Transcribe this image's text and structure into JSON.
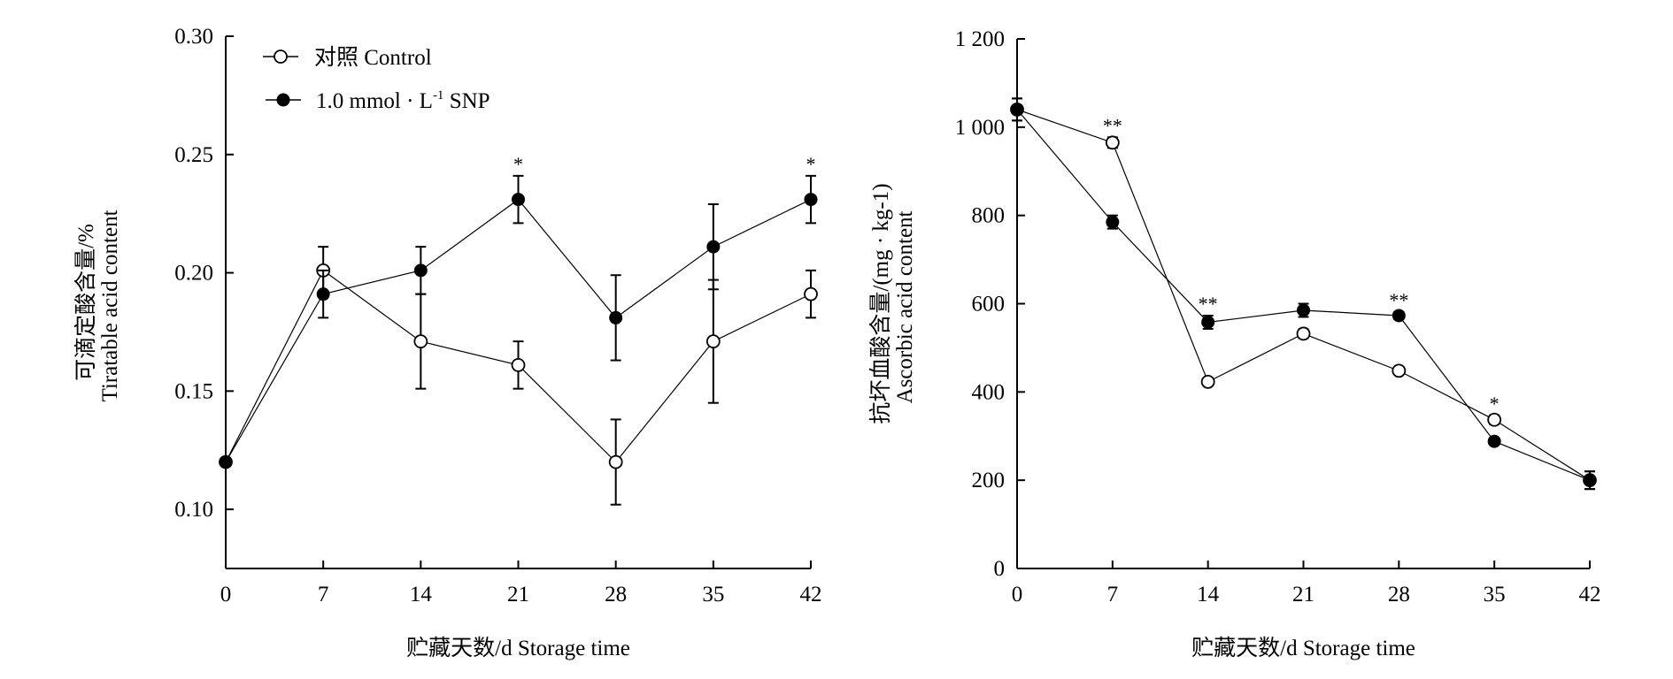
{
  "chart_data": [
    {
      "type": "line",
      "title": "",
      "xlabel": "贮藏天数/d Storage time",
      "ylabel_cn": "可滴定酸含量/%",
      "ylabel_en": "Tiratable acid content",
      "x": [
        0,
        7,
        14,
        21,
        28,
        35,
        42
      ],
      "xticks": [
        "0",
        "7",
        "14",
        "21",
        "28",
        "35",
        "42"
      ],
      "ylim": [
        0.075,
        0.3
      ],
      "yticks": [
        0.1,
        0.15,
        0.2,
        0.25,
        0.3
      ],
      "ytick_labels": [
        "0.10",
        "0.15",
        "0.20",
        "0.25",
        "0.30"
      ],
      "legend_position": "top-left",
      "series": [
        {
          "name": "对照  Control",
          "marker": "open",
          "values": [
            0.12,
            0.201,
            0.171,
            0.161,
            0.12,
            0.171,
            0.191
          ],
          "errors": [
            0,
            0.01,
            0.02,
            0.01,
            0.018,
            0.026,
            0.01
          ]
        },
        {
          "name": "1.0 mmol · L-1 SNP",
          "marker": "filled",
          "values": [
            0.12,
            0.191,
            0.201,
            0.231,
            0.181,
            0.211,
            0.231
          ],
          "errors": [
            0,
            0.01,
            0.01,
            0.01,
            0.018,
            0.018,
            0.01
          ]
        }
      ],
      "annotations": [
        {
          "x": 21,
          "text": "*"
        },
        {
          "x": 42,
          "text": "*"
        }
      ]
    },
    {
      "type": "line",
      "title": "",
      "xlabel": "贮藏天数/d Storage time",
      "ylabel_cn": "抗坏血酸含量/(mg · kg-1)",
      "ylabel_en": "Ascorbic acid content",
      "x": [
        0,
        7,
        14,
        21,
        28,
        35,
        42
      ],
      "xticks": [
        "0",
        "7",
        "14",
        "21",
        "28",
        "35",
        "42"
      ],
      "ylim": [
        0,
        1200
      ],
      "yticks": [
        0,
        200,
        400,
        600,
        800,
        1000,
        1200
      ],
      "ytick_labels": [
        "0",
        "200",
        "400",
        "600",
        "800",
        "1 000",
        "1 200"
      ],
      "series": [
        {
          "name": "对照  Control",
          "marker": "open",
          "values": [
            1040,
            965,
            423,
            532,
            448,
            337,
            200
          ],
          "errors": [
            25,
            12,
            8,
            10,
            6,
            10,
            20
          ]
        },
        {
          "name": "1.0 mmol · L-1 SNP",
          "marker": "filled",
          "values": [
            1040,
            785,
            558,
            585,
            573,
            288,
            200
          ],
          "errors": [
            25,
            15,
            15,
            15,
            8,
            6,
            20
          ]
        }
      ],
      "annotations": [
        {
          "x": 7,
          "text": "**"
        },
        {
          "x": 14,
          "text": "**"
        },
        {
          "x": 28,
          "text": "**"
        },
        {
          "x": 35,
          "text": "*"
        }
      ]
    }
  ]
}
